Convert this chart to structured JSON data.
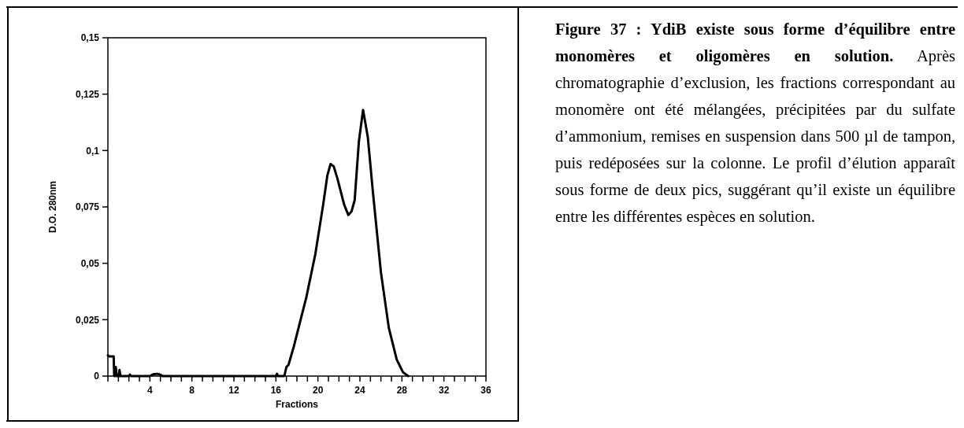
{
  "chart_data": {
    "type": "line",
    "title": "Figure 37 : YdiB existe sous forme d’équilibre entre monomères et oligomères en solution.",
    "annotations": [
      "Après chromatographie d’exclusion, les fractions correspondant au monomère ont été mélangées, précipitées par du sulfate d’ammonium, remises en suspension dans 500 µl de tampon, puis redéposées sur la colonne. Le profil d’élution apparaît sous forme de deux pics, suggérant qu’il existe un équilibre entre les différentes espèces en solution."
    ],
    "xlabel": "Fractions",
    "ylabel": "D.O. 280nm",
    "xlim": [
      0,
      36
    ],
    "ylim": [
      0,
      0.15
    ],
    "xticks": [
      {
        "value": 0,
        "label": null
      },
      {
        "value": 1,
        "label": null
      },
      {
        "value": 2,
        "label": null
      },
      {
        "value": 3,
        "label": null
      },
      4,
      {
        "value": 5,
        "label": null
      },
      {
        "value": 6,
        "label": null
      },
      {
        "value": 7,
        "label": null
      },
      8,
      {
        "value": 9,
        "label": null
      },
      {
        "value": 10,
        "label": null
      },
      {
        "value": 11,
        "label": null
      },
      12,
      {
        "value": 13,
        "label": null
      },
      {
        "value": 14,
        "label": null
      },
      {
        "value": 15,
        "label": null
      },
      16,
      {
        "value": 17,
        "label": null
      },
      {
        "value": 18,
        "label": null
      },
      {
        "value": 19,
        "label": null
      },
      20,
      {
        "value": 21,
        "label": null
      },
      {
        "value": 22,
        "label": null
      },
      {
        "value": 23,
        "label": null
      },
      24,
      {
        "value": 25,
        "label": null
      },
      {
        "value": 26,
        "label": null
      },
      {
        "value": 27,
        "label": null
      },
      28,
      {
        "value": 29,
        "label": null
      },
      {
        "value": 30,
        "label": null
      },
      {
        "value": 31,
        "label": null
      },
      32,
      {
        "value": 33,
        "label": null
      },
      {
        "value": 34,
        "label": null
      },
      {
        "value": 35,
        "label": null
      },
      36
    ],
    "yticks": [
      0,
      {
        "value": 0.025,
        "label": "0,025"
      },
      {
        "value": 0.05,
        "label": "0,05"
      },
      {
        "value": 0.075,
        "label": "0,075"
      },
      {
        "value": 0.1,
        "label": "0,1"
      },
      {
        "value": 0.125,
        "label": "0,125"
      },
      {
        "value": 0.15,
        "label": "0,15"
      }
    ],
    "grid": false,
    "marker": "none",
    "line_style": "solid",
    "series": [
      {
        "color": "#000000",
        "x": [
          0,
          0.1,
          0.55,
          0.6,
          0.7,
          0.75,
          0.85,
          1.05,
          1.1,
          1.2,
          2.0,
          2.1,
          2.2,
          4.0,
          4.3,
          4.7,
          5.0,
          5.2,
          16.0,
          16.1,
          16.2,
          16.8,
          17.0,
          17.2,
          17.7,
          18.9,
          19.75,
          20.5,
          20.9,
          21.2,
          21.5,
          21.85,
          22.5,
          22.9,
          23.2,
          23.5,
          23.9,
          24.3,
          24.75,
          25.25,
          26.0,
          26.75,
          27.5,
          28.1,
          28.6
        ],
        "values": [
          0.0092,
          0.0087,
          0.0087,
          0,
          0,
          0.004,
          0,
          0,
          0.0027,
          0,
          0,
          0.0007,
          0,
          0,
          0.0008,
          0.001,
          0.0006,
          0,
          0,
          0.001,
          0,
          0,
          0.004,
          0.005,
          0.013,
          0.035,
          0.054,
          0.076,
          0.089,
          0.094,
          0.093,
          0.0877,
          0.076,
          0.0714,
          0.073,
          0.078,
          0.104,
          0.118,
          0.106,
          0.081,
          0.046,
          0.0214,
          0.0074,
          0.0017,
          0
        ]
      }
    ]
  }
}
